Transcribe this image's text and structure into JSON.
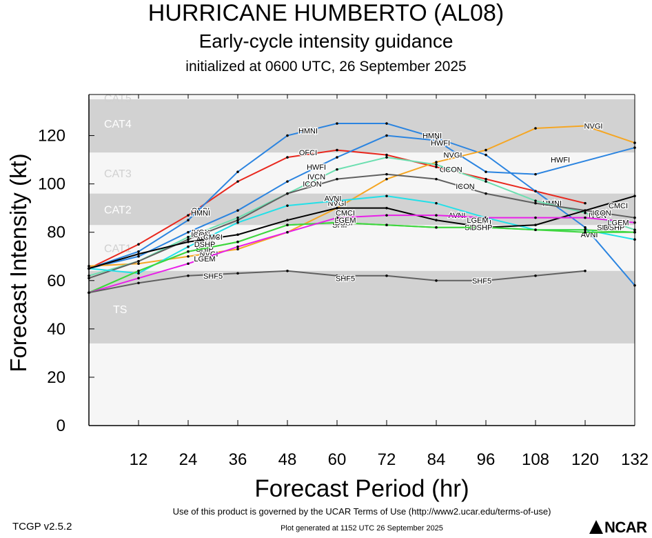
{
  "header": {
    "title": "HURRICANE HUMBERTO (AL08)",
    "subtitle": "Early-cycle intensity guidance",
    "init": "initialized at 0600 UTC, 26 September 2025"
  },
  "footer": {
    "version": "TCGP v2.5.2",
    "terms": "Use of this product is governed by the UCAR Terms of Use (http://www2.ucar.edu/terms-of-use)",
    "generated": "Plot generated at 1152 UTC   26 September 2025",
    "logo_text": "NCAR"
  },
  "chart_data": {
    "type": "line",
    "xlabel": "Forecast Period (hr)",
    "ylabel": "Forecast Intensity (kt)",
    "xlim": [
      0,
      132
    ],
    "ylim": [
      0,
      137
    ],
    "xticks": [
      12,
      24,
      36,
      48,
      60,
      72,
      84,
      96,
      108,
      120,
      132
    ],
    "yticks": [
      0,
      20,
      40,
      60,
      80,
      100,
      120
    ],
    "bands": [
      {
        "label": "TS",
        "from": 34,
        "to": 64,
        "shade": "dark"
      },
      {
        "label": "CAT1",
        "from": 64,
        "to": 83,
        "shade": "light"
      },
      {
        "label": "CAT2",
        "from": 83,
        "to": 96,
        "shade": "dark"
      },
      {
        "label": "CAT3",
        "from": 96,
        "to": 113,
        "shade": "light"
      },
      {
        "label": "CAT4",
        "from": 113,
        "to": 137,
        "shade": "dark"
      },
      {
        "label": "CAT5",
        "from": 137,
        "to": 160,
        "shade": "light"
      }
    ],
    "series": [
      {
        "name": "OFCI",
        "color": "#e8281e",
        "x": [
          0,
          12,
          24,
          36,
          48,
          60,
          72,
          84,
          96,
          108,
          120
        ],
        "y": [
          65,
          75,
          87,
          101,
          111,
          114,
          112,
          107,
          102,
          97,
          92
        ],
        "labels": [
          {
            "x": 27,
            "y": 89
          },
          {
            "x": 53,
            "y": 113
          },
          {
            "x": 87,
            "y": 106
          }
        ]
      },
      {
        "name": "HMNI",
        "color": "#2b84e0",
        "x": [
          0,
          12,
          24,
          36,
          48,
          60,
          72,
          84,
          96,
          108,
          120,
          132
        ],
        "y": [
          65,
          72,
          85,
          105,
          120,
          125,
          125,
          119,
          112,
          97,
          82,
          58
        ],
        "labels": [
          {
            "x": 27,
            "y": 88
          },
          {
            "x": 53,
            "y": 122
          },
          {
            "x": 83,
            "y": 120
          },
          {
            "x": 112,
            "y": 92
          }
        ]
      },
      {
        "name": "HWFI",
        "color": "#2b84e0",
        "x": [
          0,
          12,
          24,
          36,
          48,
          60,
          72,
          84,
          96,
          108,
          132
        ],
        "y": [
          65,
          70,
          80,
          89,
          101,
          111,
          120,
          118,
          105,
          104,
          115
        ],
        "labels": [
          {
            "x": 55,
            "y": 107
          },
          {
            "x": 85,
            "y": 117
          },
          {
            "x": 114,
            "y": 110
          }
        ]
      },
      {
        "name": "NVGI",
        "color": "#f5a623",
        "x": [
          0,
          12,
          24,
          36,
          48,
          60,
          72,
          84,
          96,
          108,
          120,
          132
        ],
        "y": [
          66,
          67,
          70,
          73,
          80,
          90,
          102,
          109,
          114,
          123,
          124,
          117
        ],
        "labels": [
          {
            "x": 29,
            "y": 71
          },
          {
            "x": 60,
            "y": 92
          },
          {
            "x": 88,
            "y": 112
          },
          {
            "x": 122,
            "y": 124
          }
        ]
      },
      {
        "name": "IVCN",
        "color": "#6bdfb0",
        "x": [
          0,
          12,
          24,
          36,
          48,
          60,
          72,
          84,
          96,
          108,
          120,
          132
        ],
        "y": [
          62,
          68,
          78,
          86,
          96,
          106,
          111,
          108,
          101,
          93,
          88,
          81
        ],
        "labels": [
          {
            "x": 27,
            "y": 80
          },
          {
            "x": 55,
            "y": 103
          },
          {
            "x": 123,
            "y": 87
          }
        ]
      },
      {
        "name": "ICON",
        "color": "#606060",
        "x": [
          0,
          12,
          24,
          36,
          48,
          60,
          72,
          84,
          96,
          108,
          120,
          132
        ],
        "y": [
          61,
          68,
          77,
          85,
          96,
          102,
          104,
          102,
          96,
          92,
          89,
          86
        ],
        "labels": [
          {
            "x": 27,
            "y": 79
          },
          {
            "x": 54,
            "y": 100
          },
          {
            "x": 88,
            "y": 106
          },
          {
            "x": 91,
            "y": 99
          },
          {
            "x": 124,
            "y": 88
          }
        ]
      },
      {
        "name": "AVNI",
        "color": "#22e0e8",
        "x": [
          0,
          12,
          24,
          36,
          48,
          60,
          72,
          84,
          96,
          108,
          120,
          132
        ],
        "y": [
          65,
          63,
          74,
          84,
          91,
          93,
          95,
          92,
          86,
          81,
          81,
          77
        ],
        "labels": [
          {
            "x": 28,
            "y": 77
          },
          {
            "x": 59,
            "y": 94
          },
          {
            "x": 89,
            "y": 87
          },
          {
            "x": 121,
            "y": 79
          }
        ]
      },
      {
        "name": "CMCI",
        "color": "#000000",
        "x": [
          0,
          12,
          24,
          36,
          48,
          60,
          72,
          84,
          96,
          108,
          120,
          132
        ],
        "y": [
          65,
          71,
          76,
          79,
          85,
          90,
          90,
          85,
          82,
          83,
          89,
          95
        ],
        "labels": [
          {
            "x": 30,
            "y": 78
          },
          {
            "x": 62,
            "y": 88
          },
          {
            "x": 95,
            "y": 84
          },
          {
            "x": 128,
            "y": 91
          }
        ]
      },
      {
        "name": "SHIP",
        "color": "#3ed63e",
        "x": [
          0,
          12,
          24,
          36,
          48,
          60,
          72,
          84,
          96,
          108,
          120,
          132
        ],
        "y": [
          55,
          64,
          72,
          76,
          83,
          84,
          83,
          82,
          82,
          81,
          81,
          80
        ],
        "labels": [
          {
            "x": 28,
            "y": 73
          },
          {
            "x": 61,
            "y": 83
          },
          {
            "x": 93,
            "y": 82
          },
          {
            "x": 125,
            "y": 82
          }
        ]
      },
      {
        "name": "DSHP",
        "color": "#3ed63e",
        "x": [
          0,
          12,
          24,
          36,
          48,
          60,
          72,
          84,
          96,
          108,
          120,
          132
        ],
        "y": [
          55,
          64,
          72,
          76,
          83,
          84,
          83,
          82,
          82,
          81,
          80,
          80
        ],
        "labels": [
          {
            "x": 28,
            "y": 75
          },
          {
            "x": 62,
            "y": 84
          },
          {
            "x": 95,
            "y": 82
          },
          {
            "x": 127,
            "y": 82
          }
        ]
      },
      {
        "name": "LGEM",
        "color": "#e81fe8",
        "x": [
          0,
          12,
          24,
          36,
          48,
          60,
          72,
          84,
          96,
          108,
          120,
          132
        ],
        "y": [
          55,
          61,
          67,
          74,
          80,
          86,
          87,
          87,
          86,
          86,
          86,
          84
        ],
        "labels": [
          {
            "x": 28,
            "y": 69
          },
          {
            "x": 62,
            "y": 85
          },
          {
            "x": 94,
            "y": 85
          },
          {
            "x": 128,
            "y": 84
          }
        ]
      },
      {
        "name": "SHF5",
        "color": "#606060",
        "x": [
          0,
          12,
          24,
          36,
          48,
          60,
          72,
          84,
          96,
          108,
          120
        ],
        "y": [
          55,
          59,
          62,
          63,
          64,
          62,
          62,
          60,
          60,
          62,
          64
        ],
        "labels": [
          {
            "x": 30,
            "y": 62
          },
          {
            "x": 62,
            "y": 61
          },
          {
            "x": 95,
            "y": 60
          }
        ]
      }
    ]
  }
}
